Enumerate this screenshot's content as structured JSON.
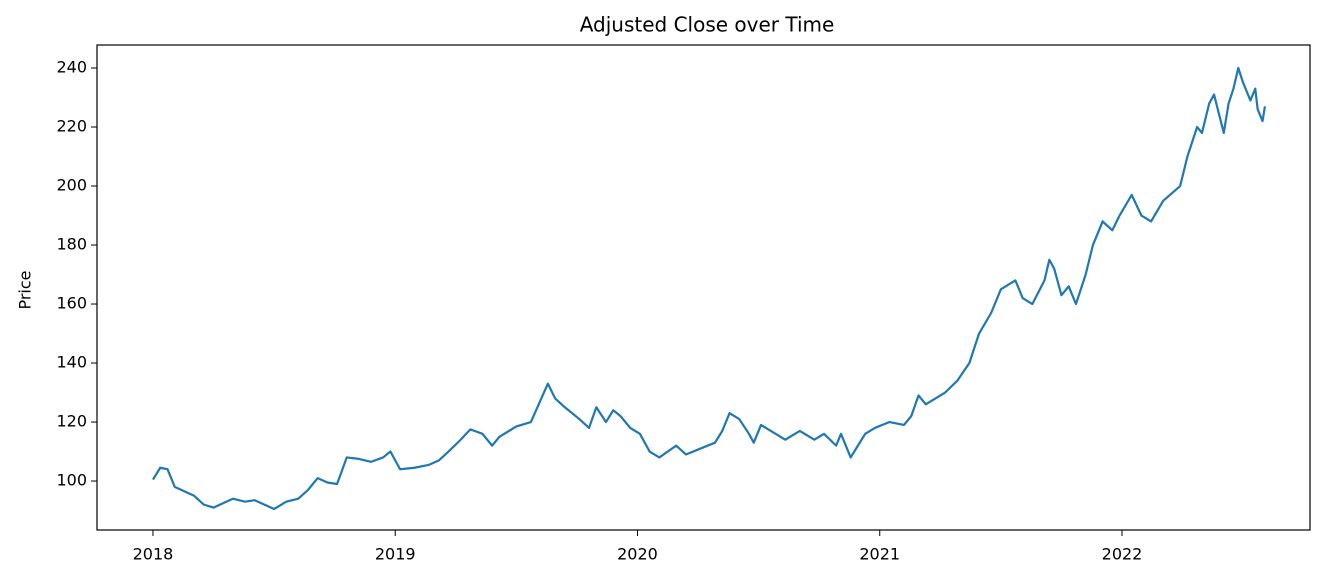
{
  "chart_data": {
    "type": "line",
    "title": "Adjusted Close over Time",
    "y_label": "Price",
    "x": [
      2018.0,
      2018.03,
      2018.06,
      2018.09,
      2018.13,
      2018.17,
      2018.21,
      2018.25,
      2018.29,
      2018.33,
      2018.38,
      2018.42,
      2018.46,
      2018.5,
      2018.55,
      2018.6,
      2018.64,
      2018.68,
      2018.72,
      2018.76,
      2018.8,
      2018.85,
      2018.9,
      2018.95,
      2018.98,
      2019.02,
      2019.08,
      2019.14,
      2019.18,
      2019.22,
      2019.27,
      2019.31,
      2019.36,
      2019.4,
      2019.43,
      2019.5,
      2019.56,
      2019.63,
      2019.66,
      2019.7,
      2019.76,
      2019.8,
      2019.83,
      2019.87,
      2019.9,
      2019.93,
      2019.97,
      2020.01,
      2020.05,
      2020.09,
      2020.16,
      2020.2,
      2020.26,
      2020.32,
      2020.35,
      2020.38,
      2020.42,
      2020.46,
      2020.48,
      2020.51,
      2020.57,
      2020.61,
      2020.67,
      2020.73,
      2020.77,
      2020.82,
      2020.84,
      2020.88,
      2020.91,
      2020.94,
      2020.98,
      2021.04,
      2021.1,
      2021.13,
      2021.16,
      2021.19,
      2021.27,
      2021.32,
      2021.37,
      2021.41,
      2021.46,
      2021.5,
      2021.54,
      2021.56,
      2021.59,
      2021.63,
      2021.68,
      2021.7,
      2021.72,
      2021.75,
      2021.78,
      2021.81,
      2021.85,
      2021.88,
      2021.92,
      2021.96,
      2021.99,
      2022.04,
      2022.08,
      2022.12,
      2022.17,
      2022.24,
      2022.27,
      2022.31,
      2022.33,
      2022.36,
      2022.38,
      2022.42,
      2022.44,
      2022.46,
      2022.48,
      2022.5,
      2022.53,
      2022.55,
      2022.56,
      2022.58,
      2022.59
    ],
    "series": [
      {
        "name": "Adjusted Close",
        "color": "#1f77b4",
        "values": [
          100.5,
          104.5,
          104,
          98,
          96.5,
          95,
          92,
          91,
          92.5,
          94,
          93,
          93.5,
          92,
          90.5,
          93,
          94,
          97,
          101,
          99.5,
          99,
          108,
          107.5,
          106.5,
          108,
          110,
          104,
          104.5,
          105.5,
          107,
          110,
          114,
          117.5,
          116,
          112,
          115,
          118.5,
          120,
          133,
          128,
          125,
          121,
          118,
          125,
          120,
          124,
          122,
          118,
          116,
          110,
          108,
          112,
          109,
          111,
          113,
          117,
          123,
          121,
          116,
          113,
          119,
          116,
          114,
          117,
          114,
          116,
          112,
          116,
          108,
          112,
          116,
          118,
          120,
          119,
          122,
          129,
          126,
          130,
          134,
          140,
          150,
          157,
          165,
          167,
          168,
          162,
          160,
          168,
          175,
          172,
          163,
          166,
          160,
          170,
          180,
          188,
          185,
          190,
          197,
          190,
          188,
          195,
          200,
          210,
          220,
          218,
          228,
          231,
          218,
          228,
          233,
          240,
          235,
          229,
          233,
          226,
          222,
          227
        ]
      }
    ],
    "xlim": [
      2017.769,
      2022.776
    ],
    "xticks": [
      2018,
      2019,
      2020,
      2021,
      2022
    ],
    "ylim": [
      83.4,
      247.8
    ],
    "yticks": [
      100,
      120,
      140,
      160,
      180,
      200,
      220,
      240
    ]
  }
}
